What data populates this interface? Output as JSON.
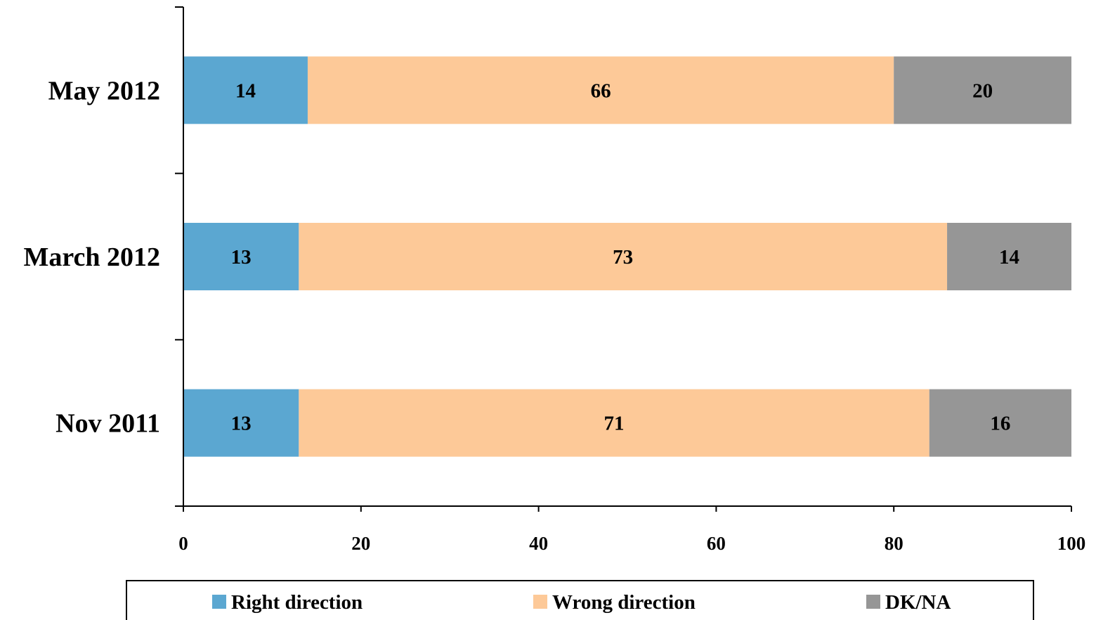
{
  "chart_data": {
    "type": "bar",
    "orientation": "horizontal",
    "stacked": true,
    "categories": [
      "May 2012",
      "March 2012",
      "Nov 2011"
    ],
    "series": [
      {
        "name": "Right direction",
        "values": [
          14,
          13,
          13
        ],
        "color": "#5BA7D1"
      },
      {
        "name": "Wrong direction",
        "values": [
          66,
          73,
          71
        ],
        "color": "#FDC998"
      },
      {
        "name": "DK/NA",
        "values": [
          20,
          14,
          16
        ],
        "color": "#969696"
      }
    ],
    "xlim": [
      0,
      100
    ],
    "xticks": [
      0,
      20,
      40,
      60,
      80,
      100
    ],
    "title": "",
    "xlabel": "",
    "ylabel": "",
    "grid": false,
    "legend_position": "bottom"
  }
}
